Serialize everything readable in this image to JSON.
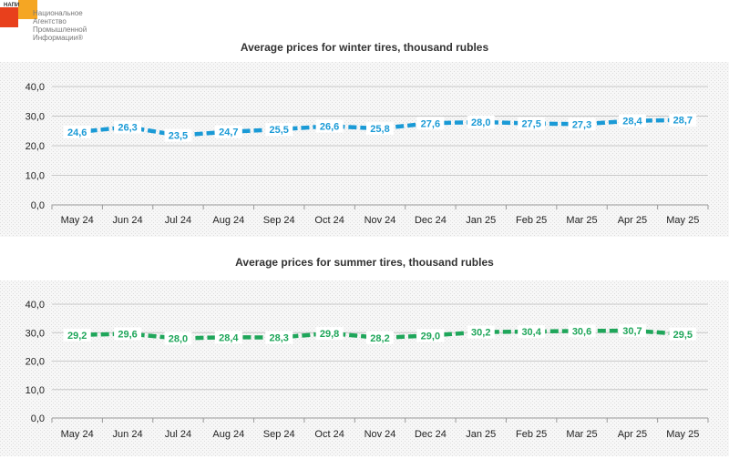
{
  "logo": {
    "abbr": "НАПИ",
    "lines": [
      "Национальное",
      "Агентство",
      "Промышленной",
      "Информации®"
    ]
  },
  "chart_data": [
    {
      "type": "line",
      "title": "Average prices for winter tires, thousand rubles",
      "categories": [
        "May 24",
        "Jun 24",
        "Jul 24",
        "Aug 24",
        "Sep 24",
        "Oct 24",
        "Nov 24",
        "Dec 24",
        "Jan 25",
        "Feb 25",
        "Mar 25",
        "Apr 25",
        "May 25"
      ],
      "values": [
        24.6,
        26.3,
        23.5,
        24.7,
        25.5,
        26.6,
        25.8,
        27.6,
        28.0,
        27.5,
        27.3,
        28.4,
        28.7
      ],
      "value_labels": [
        "24,6",
        "26,3",
        "23,5",
        "24,7",
        "25,5",
        "26,6",
        "25,8",
        "27,6",
        "28,0",
        "27,5",
        "27,3",
        "28,4",
        "28,7"
      ],
      "y_ticks": [
        "0,0",
        "10,0",
        "20,0",
        "30,0",
        "40,0"
      ],
      "ylim": [
        0,
        40
      ],
      "line_style": "dashed",
      "color": "#1a9ad6",
      "grid": true
    },
    {
      "type": "line",
      "title": "Average prices for summer tires, thousand rubles",
      "categories": [
        "May 24",
        "Jun 24",
        "Jul 24",
        "Aug 24",
        "Sep 24",
        "Oct 24",
        "Nov 24",
        "Dec 24",
        "Jan 25",
        "Feb 25",
        "Mar 25",
        "Apr 25",
        "May 25"
      ],
      "values": [
        29.2,
        29.6,
        28.0,
        28.4,
        28.3,
        29.8,
        28.2,
        29.0,
        30.2,
        30.4,
        30.6,
        30.7,
        29.5
      ],
      "value_labels": [
        "29,2",
        "29,6",
        "28,0",
        "28,4",
        "28,3",
        "29,8",
        "28,2",
        "29,0",
        "30,2",
        "30,4",
        "30,6",
        "30,7",
        "29,5"
      ],
      "y_ticks": [
        "0,0",
        "10,0",
        "20,0",
        "30,0",
        "40,0"
      ],
      "ylim": [
        0,
        40
      ],
      "line_style": "dashed",
      "color": "#1fa65a",
      "grid": true
    }
  ]
}
